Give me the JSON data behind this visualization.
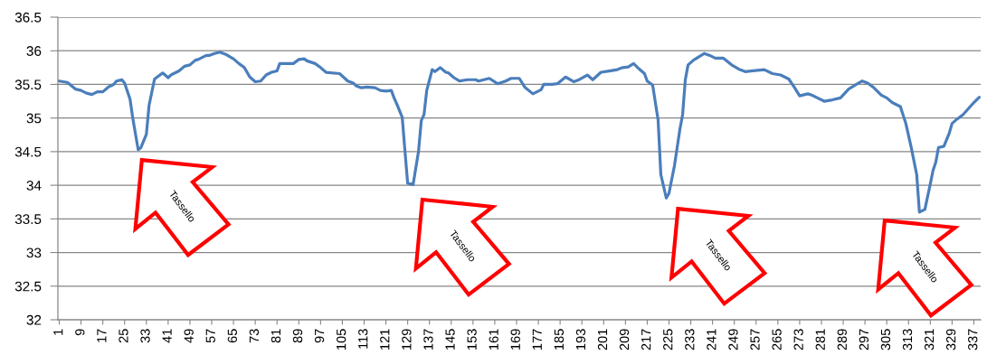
{
  "chart_data": {
    "type": "line",
    "x": [
      1,
      4,
      7,
      9,
      11,
      13,
      15,
      17,
      19,
      21,
      22,
      24,
      25,
      27,
      28,
      30,
      31,
      33,
      34,
      36,
      37,
      39,
      41,
      42,
      45,
      47,
      49,
      51,
      52,
      55,
      56,
      58,
      60,
      62,
      65,
      67,
      69,
      71,
      73,
      75,
      77,
      79,
      81,
      82,
      86,
      87,
      89,
      91,
      92,
      95,
      97,
      99,
      104,
      107,
      109,
      110,
      112,
      114,
      117,
      119,
      121,
      123,
      124,
      125,
      127,
      128,
      129,
      131,
      133,
      134,
      135,
      136,
      138,
      139,
      141,
      143,
      144,
      146,
      148,
      151,
      154,
      155,
      159,
      162,
      165,
      167,
      170,
      172,
      175,
      178,
      179,
      182,
      184,
      187,
      190,
      192,
      195,
      197,
      200,
      203,
      206,
      208,
      210,
      212,
      214,
      216,
      217,
      219,
      221,
      222,
      224,
      225,
      227,
      229,
      230,
      231,
      232,
      234,
      236,
      238,
      240,
      242,
      245,
      248,
      251,
      253,
      255,
      260,
      263,
      266,
      269,
      271,
      273,
      276,
      278,
      282,
      285,
      288,
      291,
      293,
      296,
      298,
      300,
      303,
      305,
      307,
      310,
      312,
      314,
      316,
      317,
      319,
      321,
      322,
      323,
      324,
      326,
      328,
      329,
      331,
      333,
      335,
      337,
      339
    ],
    "series": [
      {
        "color": "#4a7ebb",
        "values": [
          35.55,
          35.53,
          35.43,
          35.41,
          35.37,
          35.35,
          35.39,
          35.39,
          35.46,
          35.5,
          35.55,
          35.57,
          35.52,
          35.28,
          35.0,
          34.53,
          34.56,
          34.76,
          35.19,
          35.58,
          35.61,
          35.67,
          35.6,
          35.64,
          35.7,
          35.77,
          35.79,
          35.86,
          35.87,
          35.93,
          35.93,
          35.96,
          35.98,
          35.95,
          35.88,
          35.81,
          35.75,
          35.61,
          35.54,
          35.55,
          35.64,
          35.68,
          35.7,
          35.81,
          35.81,
          35.81,
          35.87,
          35.88,
          35.85,
          35.81,
          35.75,
          35.68,
          35.66,
          35.55,
          35.52,
          35.48,
          35.45,
          35.46,
          35.45,
          35.41,
          35.4,
          35.41,
          35.3,
          35.21,
          35.01,
          34.51,
          34.03,
          34.01,
          34.51,
          34.96,
          35.05,
          35.41,
          35.72,
          35.69,
          35.75,
          35.68,
          35.67,
          35.6,
          35.55,
          35.57,
          35.57,
          35.55,
          35.59,
          35.51,
          35.55,
          35.59,
          35.59,
          35.46,
          35.36,
          35.42,
          35.5,
          35.5,
          35.51,
          35.61,
          35.54,
          35.57,
          35.64,
          35.57,
          35.68,
          35.7,
          35.72,
          35.75,
          35.76,
          35.81,
          35.73,
          35.66,
          35.55,
          35.49,
          34.97,
          34.16,
          33.81,
          33.88,
          34.29,
          34.83,
          35.05,
          35.57,
          35.79,
          35.86,
          35.91,
          35.96,
          35.93,
          35.89,
          35.89,
          35.79,
          35.72,
          35.69,
          35.7,
          35.72,
          35.66,
          35.64,
          35.58,
          35.46,
          35.33,
          35.36,
          35.33,
          35.25,
          35.27,
          35.3,
          35.43,
          35.48,
          35.55,
          35.52,
          35.46,
          35.34,
          35.3,
          35.23,
          35.17,
          34.92,
          34.56,
          34.16,
          33.6,
          33.64,
          34.02,
          34.22,
          34.34,
          34.56,
          34.58,
          34.78,
          34.92,
          34.99,
          35.05,
          35.14,
          35.23,
          35.31
        ]
      }
    ],
    "xlim": [
      0.5,
      339.5
    ],
    "xticks": [
      1,
      9,
      17,
      25,
      33,
      41,
      49,
      57,
      65,
      73,
      81,
      89,
      97,
      105,
      113,
      121,
      129,
      137,
      145,
      153,
      161,
      169,
      177,
      185,
      193,
      201,
      209,
      217,
      225,
      233,
      241,
      249,
      257,
      265,
      273,
      281,
      289,
      297,
      305,
      313,
      321,
      329,
      337
    ],
    "ylim": [
      32,
      36.5
    ],
    "yticks": [
      32,
      32.5,
      33,
      33.5,
      34,
      34.5,
      35,
      35.5,
      36,
      36.5
    ],
    "grid": "y",
    "annotations": [
      "Tassello",
      "Tassello",
      "Tassello",
      "Tassello"
    ]
  }
}
